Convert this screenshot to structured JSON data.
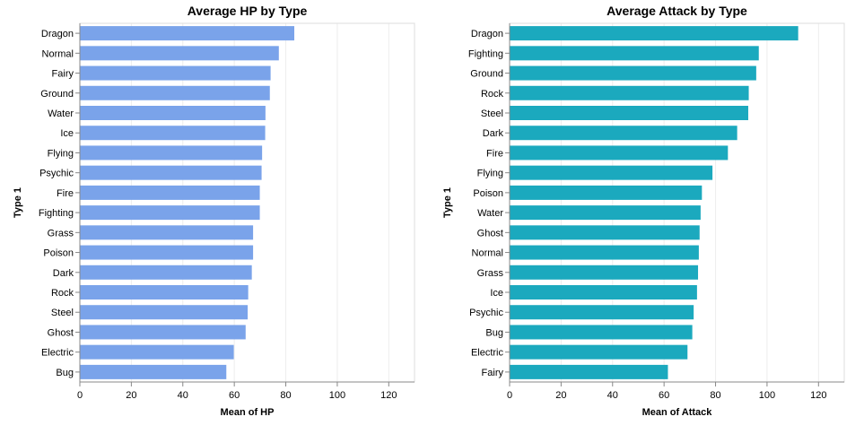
{
  "chart_data": [
    {
      "type": "bar",
      "orientation": "horizontal",
      "title": "Average HP by Type",
      "xlabel": "Mean of HP",
      "ylabel": "Type 1",
      "xlim": [
        0,
        130
      ],
      "xticks": [
        0,
        20,
        40,
        60,
        80,
        100,
        120
      ],
      "grid": true,
      "color": "#7aa3ea",
      "categories": [
        "Dragon",
        "Normal",
        "Fairy",
        "Ground",
        "Water",
        "Ice",
        "Flying",
        "Psychic",
        "Fire",
        "Fighting",
        "Grass",
        "Poison",
        "Dark",
        "Rock",
        "Steel",
        "Ghost",
        "Electric",
        "Bug"
      ],
      "values": [
        83.3,
        77.3,
        74.1,
        73.8,
        72.1,
        72.0,
        70.8,
        70.6,
        69.9,
        69.9,
        67.3,
        67.3,
        66.8,
        65.4,
        65.2,
        64.4,
        59.8,
        56.9
      ]
    },
    {
      "type": "bar",
      "orientation": "horizontal",
      "title": "Average Attack by Type",
      "xlabel": "Mean of Attack",
      "ylabel": "Type 1",
      "xlim": [
        0,
        130
      ],
      "xticks": [
        0,
        20,
        40,
        60,
        80,
        100,
        120
      ],
      "grid": true,
      "color": "#1ba9be",
      "categories": [
        "Dragon",
        "Fighting",
        "Ground",
        "Rock",
        "Steel",
        "Dark",
        "Fire",
        "Flying",
        "Poison",
        "Water",
        "Ghost",
        "Normal",
        "Grass",
        "Ice",
        "Psychic",
        "Bug",
        "Electric",
        "Fairy"
      ],
      "values": [
        112.1,
        96.8,
        95.8,
        92.9,
        92.7,
        88.4,
        84.8,
        78.8,
        74.7,
        74.2,
        73.8,
        73.5,
        73.2,
        72.8,
        71.5,
        70.97,
        69.1,
        61.5
      ]
    }
  ]
}
